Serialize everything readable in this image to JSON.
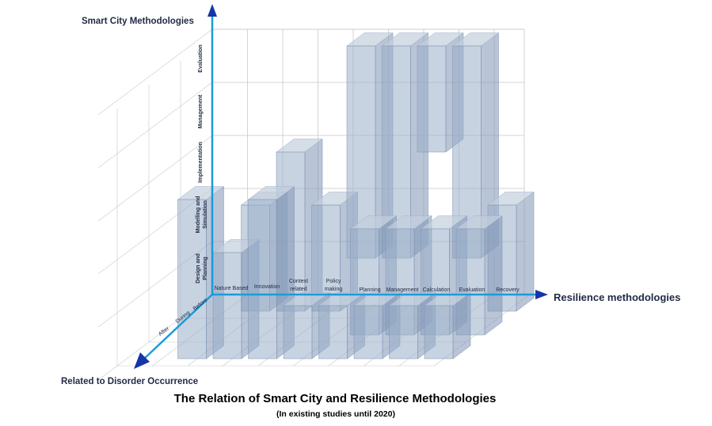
{
  "chart_data": {
    "type": "bar",
    "title": "The Relation of Smart City and Resilience Methodologies",
    "subtitle": "(In existing studies until 2020)",
    "xlabel": "Resilience methodologies",
    "ylabel": "Smart City Methodologies",
    "zlabel": "Related to Disorder Occurrence",
    "x_categories": [
      "Nature Based",
      "Innovation",
      "Context related",
      "Policy making",
      "Planning",
      "Management",
      "Calculation",
      "Evaluation",
      "Recovery"
    ],
    "y_categories": [
      "Design and Planning",
      "Modelling and Simulation",
      "Implementation",
      "Management",
      "Evaluation"
    ],
    "z_categories": [
      "Before",
      "During",
      "After"
    ],
    "bars": [
      {
        "x": "Innovation",
        "z": "Before",
        "y_low": "Design and Planning",
        "y_high": "Modelling and Simulation"
      },
      {
        "x": "Innovation",
        "z": "After",
        "y_low": "Design and Planning",
        "y_high": "Implementation"
      },
      {
        "x": "Context related",
        "z": "Before",
        "y_low": "Design and Planning",
        "y_high": "Implementation"
      },
      {
        "x": "Context related",
        "z": "After",
        "y_low": "Design and Planning",
        "y_high": "Modelling and Simulation"
      },
      {
        "x": "Policy making",
        "z": "Before",
        "y_low": "Design and Planning",
        "y_high": "Modelling and Simulation"
      },
      {
        "x": "Policy making",
        "z": "After",
        "y_low": "Design and Planning",
        "y_high": "Implementation"
      },
      {
        "x": "Planning",
        "z": "Before",
        "y_low": "Modelling and Simulation",
        "y_high": "Evaluation"
      },
      {
        "x": "Planning",
        "z": "After",
        "y_low": "Design and Planning",
        "y_high": "Design and Planning"
      },
      {
        "x": "Management",
        "z": "Before",
        "y_low": "Modelling and Simulation",
        "y_high": "Evaluation"
      },
      {
        "x": "Management",
        "z": "During",
        "y_low": "Design and Planning",
        "y_high": "Modelling and Simulation"
      },
      {
        "x": "Management",
        "z": "After",
        "y_low": "Design and Planning",
        "y_high": "Design and Planning"
      },
      {
        "x": "Calculation",
        "z": "Before",
        "y_low": "Management",
        "y_high": "Evaluation"
      },
      {
        "x": "Calculation",
        "z": "During",
        "y_low": "Design and Planning",
        "y_high": "Modelling and Simulation"
      },
      {
        "x": "Calculation",
        "z": "After",
        "y_low": "Design and Planning",
        "y_high": "Design and Planning"
      },
      {
        "x": "Evaluation",
        "z": "Before",
        "y_low": "Modelling and Simulation",
        "y_high": "Evaluation"
      },
      {
        "x": "Evaluation",
        "z": "During",
        "y_low": "Design and Planning",
        "y_high": "Modelling and Simulation"
      },
      {
        "x": "Evaluation",
        "z": "After",
        "y_low": "Design and Planning",
        "y_high": "Design and Planning"
      },
      {
        "x": "Recovery",
        "z": "Before",
        "y_low": "Design and Planning",
        "y_high": "Modelling and Simulation"
      },
      {
        "x": "Recovery",
        "z": "During",
        "y_low": "Design and Planning",
        "y_high": "Modelling and Simulation"
      },
      {
        "x": "Recovery",
        "z": "After",
        "y_low": "Design and Planning",
        "y_high": "Design and Planning"
      }
    ],
    "grid": true,
    "colors": {
      "axis": "#1b9bd8",
      "arrow": "#1436a8",
      "bar_face": "#9aaec8",
      "bar_side": "#8096b6",
      "bar_top": "#c3cedd",
      "grid": "#c9c9c9"
    }
  }
}
